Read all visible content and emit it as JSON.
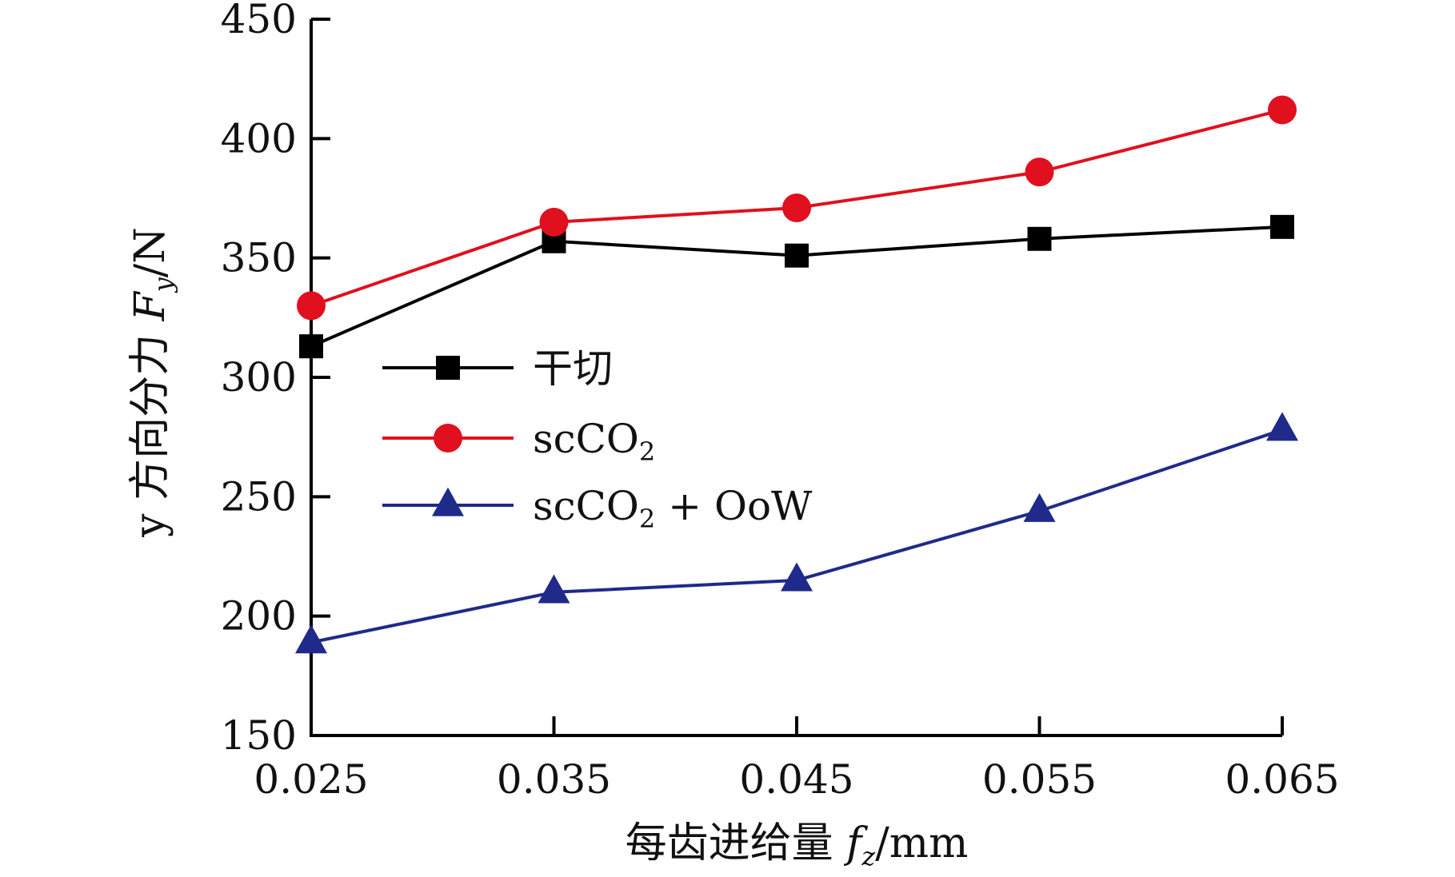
{
  "chart_data": {
    "type": "line",
    "x": [
      0.025,
      0.035,
      0.045,
      0.055,
      0.065
    ],
    "x_tick_labels": [
      "0.025",
      "0.035",
      "0.045",
      "0.055",
      "0.065"
    ],
    "y_ticks": [
      150,
      200,
      250,
      300,
      350,
      400,
      450
    ],
    "y_tick_labels": [
      "150",
      "200",
      "250",
      "300",
      "350",
      "400",
      "450"
    ],
    "ylim": [
      150,
      450
    ],
    "xlabel": {
      "main": "每齿进给量 ",
      "symbol": "f",
      "subscript": "z",
      "unit": "/mm"
    },
    "ylabel": {
      "main": "y 方向分力 ",
      "symbol": "F",
      "subscript": "y",
      "unit": "/N"
    },
    "legend_position": "center-left",
    "grid": false,
    "series": [
      {
        "name": "干切",
        "name_parts": [
          "干切",
          "",
          ""
        ],
        "color": "#000000",
        "marker": "square",
        "values": [
          313,
          357,
          351,
          358,
          363
        ]
      },
      {
        "name": "scCO2",
        "name_parts": [
          "scCO",
          "2",
          ""
        ],
        "color": "#e0101e",
        "marker": "circle",
        "values": [
          330,
          365,
          371,
          386,
          412
        ]
      },
      {
        "name": "scCO2 + OoW",
        "name_parts": [
          "scCO",
          "2",
          " + OoW"
        ],
        "color": "#1f2a8a",
        "marker": "triangle",
        "values": [
          189,
          210,
          215,
          244,
          278
        ]
      }
    ]
  }
}
